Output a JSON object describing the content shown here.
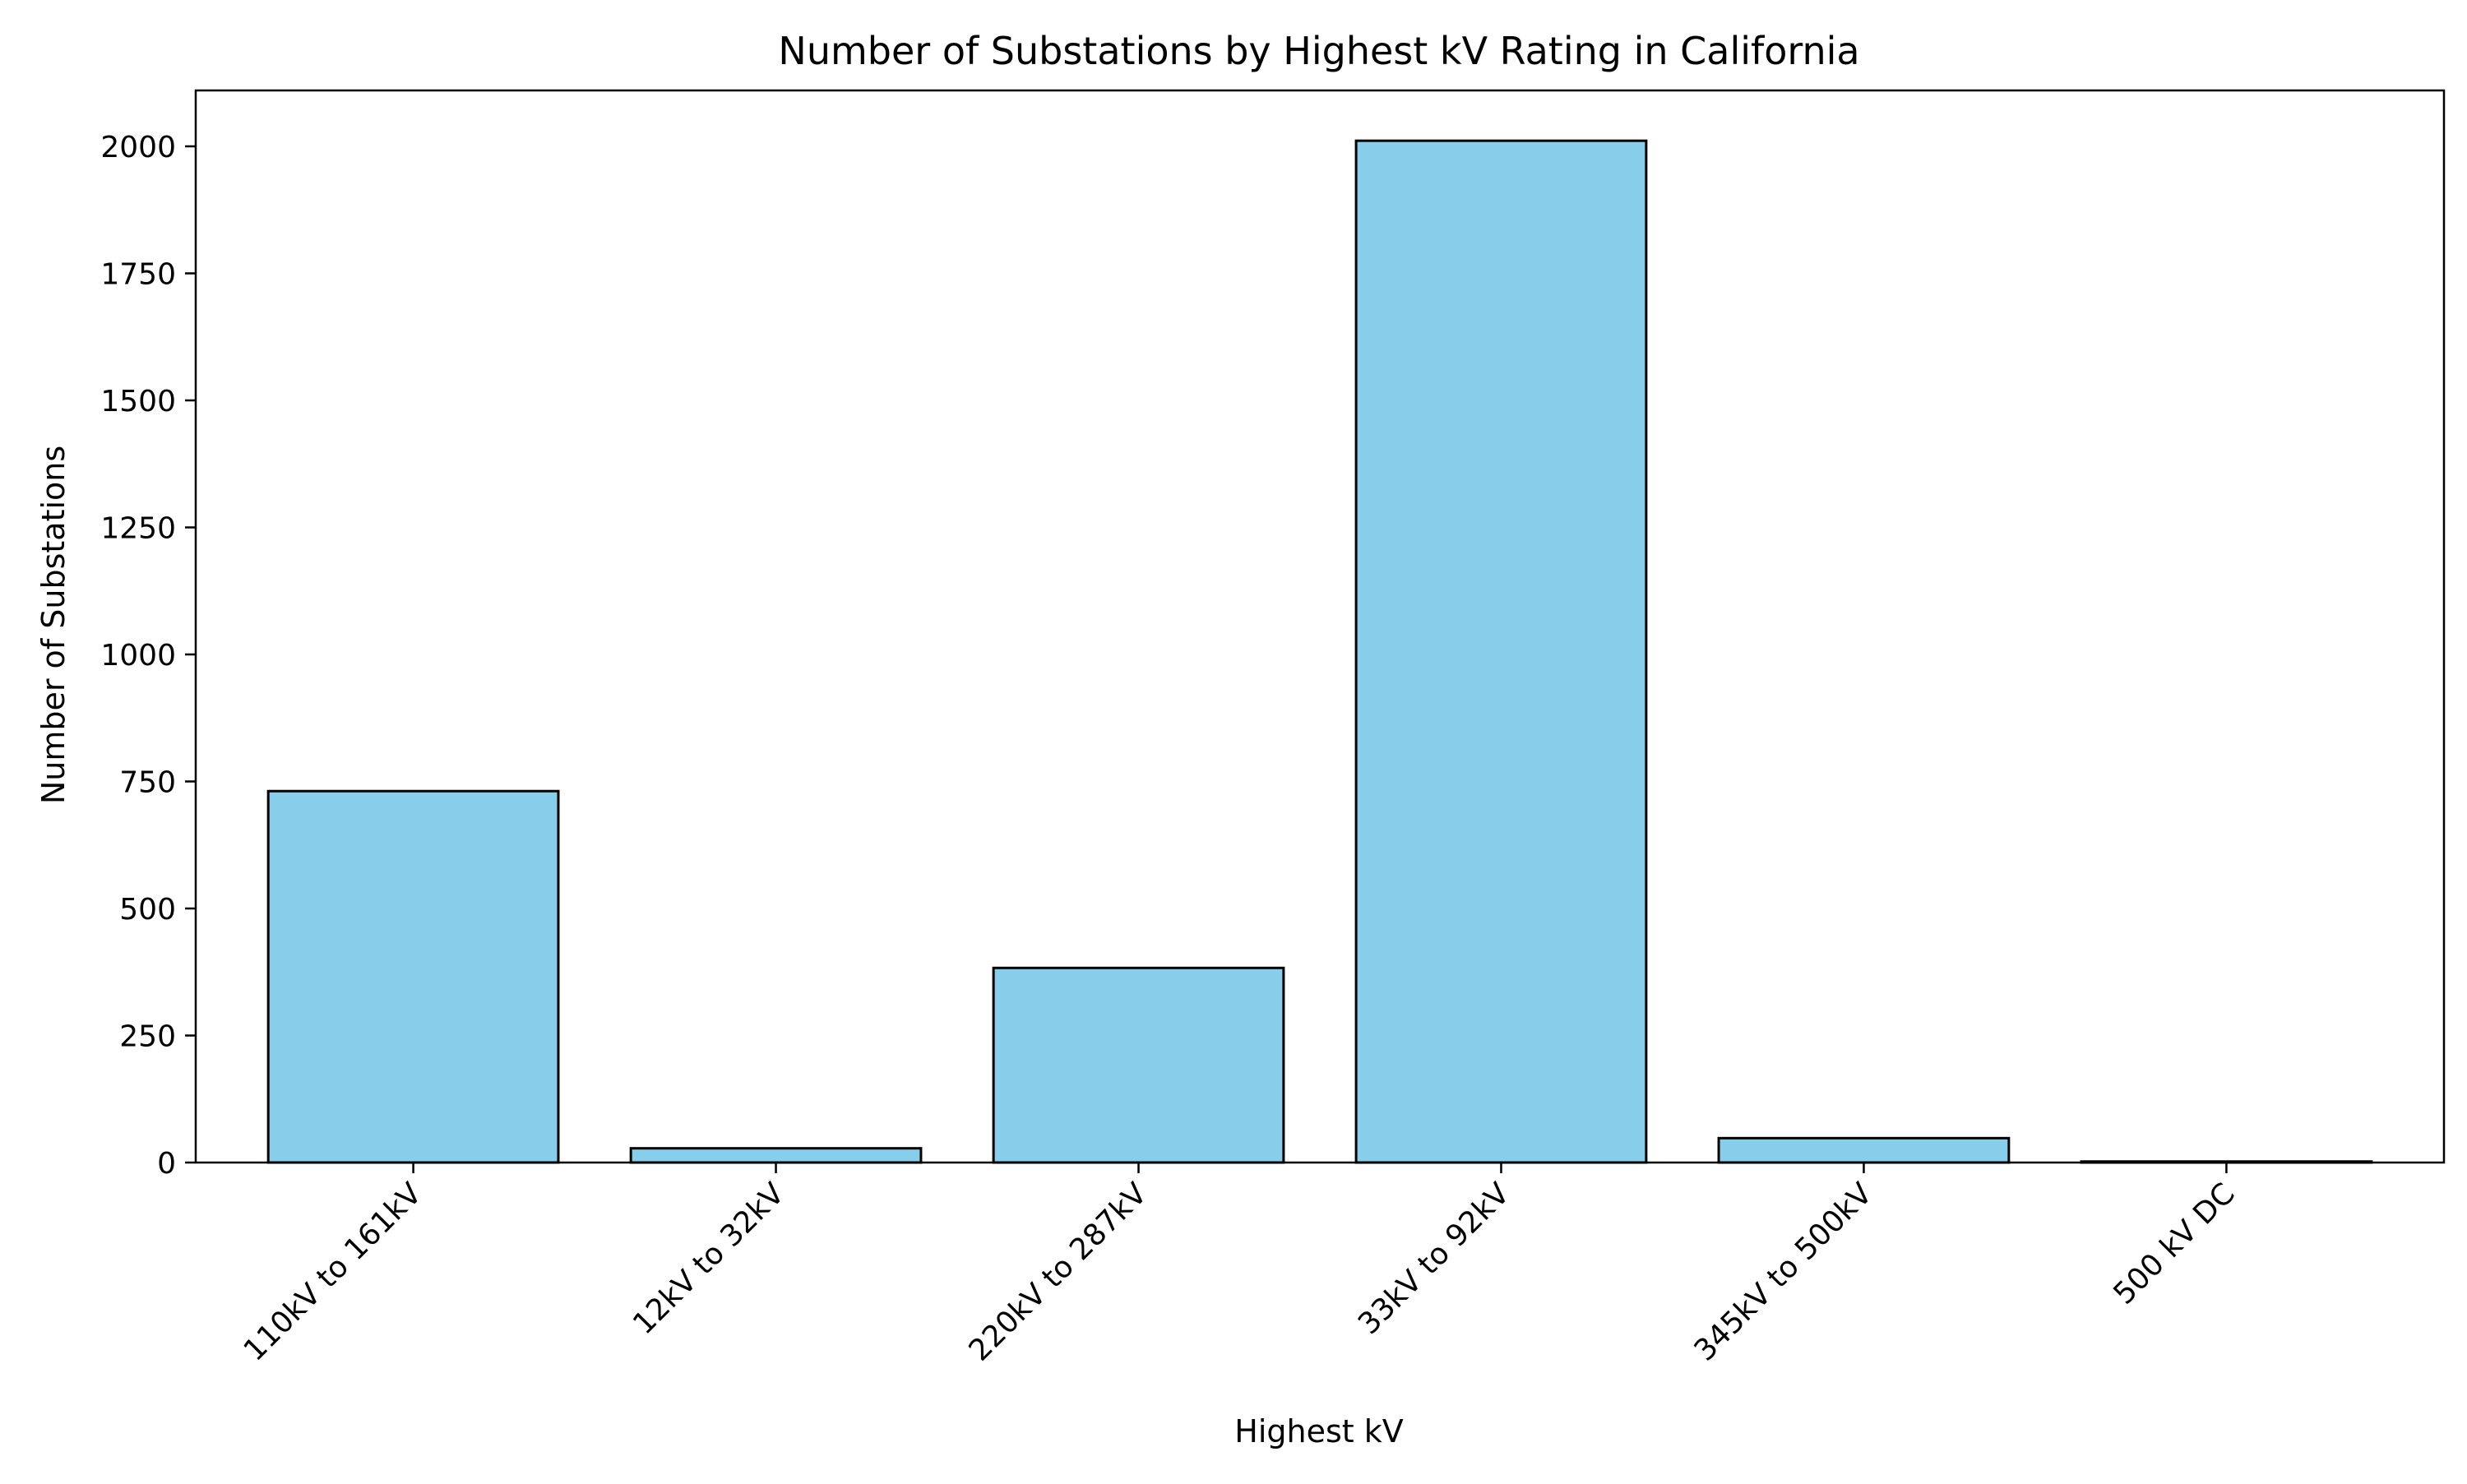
{
  "chart_data": {
    "type": "bar",
    "title": "Number of Substations by Highest kV Rating in California",
    "xlabel": "Highest kV",
    "ylabel": "Number of Substations",
    "categories": [
      "110kV to 161kV",
      "12kV to 32kV",
      "220kV to 287kV",
      "33kV to 92kV",
      "345kV to 500kV",
      "500 kV DC"
    ],
    "values": [
      731,
      28,
      383,
      2011,
      48,
      2
    ],
    "ylim": [
      0,
      2110
    ],
    "yticks": [
      0,
      250,
      500,
      750,
      1000,
      1250,
      1500,
      1750,
      2000
    ],
    "grid": false,
    "legend": "none",
    "colors": {
      "bar_fill": "#87ceeb",
      "bar_edge": "#000000",
      "axis": "#000000"
    }
  }
}
